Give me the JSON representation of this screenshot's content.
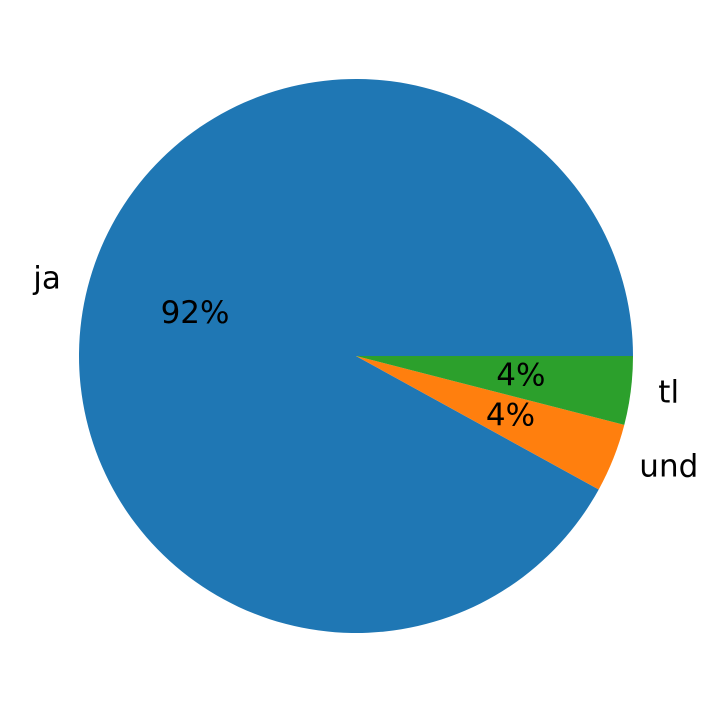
{
  "chart_data": {
    "type": "pie",
    "categories": [
      "ja",
      "und",
      "tl"
    ],
    "values": [
      92,
      4,
      4
    ],
    "value_labels": [
      "92%",
      "4%",
      "4%"
    ],
    "colors": [
      "#1f77b4",
      "#ff7f0e",
      "#2ca02c"
    ],
    "start_angle": 0,
    "counterclockwise": true
  }
}
